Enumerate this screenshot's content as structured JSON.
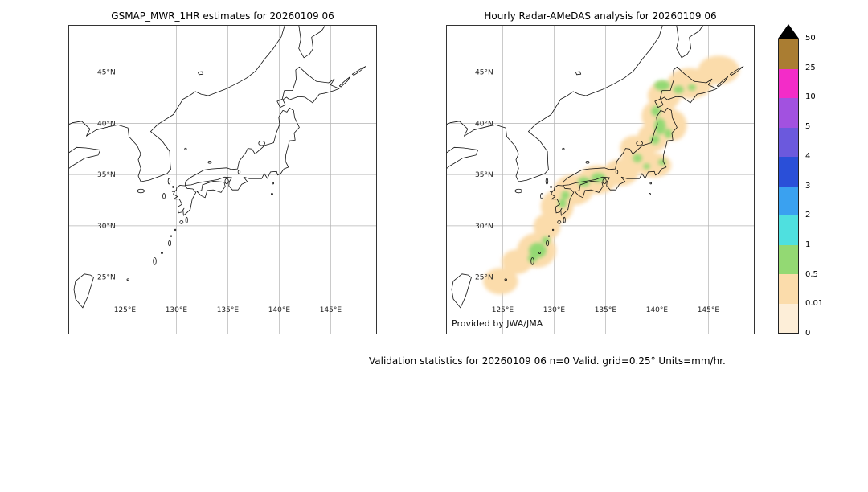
{
  "left_panel": {
    "title": "GSMAP_MWR_1HR estimates for 20260109 06"
  },
  "right_panel": {
    "title": "Hourly Radar-AMeDAS analysis for 20260109 06",
    "credit": "Provided by JWA/JMA"
  },
  "caption": "Validation statistics for 20260109 06  n=0 Valid. grid=0.25° Units=mm/hr.",
  "axes": {
    "lat_labels": [
      "45°N",
      "40°N",
      "35°N",
      "30°N",
      "25°N"
    ],
    "lon_labels": [
      "125°E",
      "130°E",
      "135°E",
      "140°E",
      "145°E"
    ]
  },
  "colorbar": {
    "tick_labels": [
      "50",
      "25",
      "10",
      "5",
      "4",
      "3",
      "2",
      "1",
      "0.5",
      "0.01",
      "0"
    ],
    "block_colors_top_to_bottom": [
      "#aa7d32",
      "#f32cc8",
      "#a251e0",
      "#6b59dd",
      "#2a4fd8",
      "#3aa1f0",
      "#4fe0df",
      "#93d973",
      "#fbdcab",
      "#fdeed8"
    ],
    "overflow_arrow_color": "#000000"
  },
  "chart_data": {
    "type": "heatmap",
    "subtype": "geographic precipitation analysis over Japan, two panels with shared colorbar",
    "units": "mm/hr",
    "grid": true,
    "legend_position": "right",
    "colorbar_levels_mm_hr": [
      0,
      0.01,
      0.5,
      1,
      2,
      3,
      4,
      5,
      10,
      25,
      50
    ],
    "map_extent": {
      "lon_min": 119.5,
      "lon_max": 149.5,
      "lat_min": 19.4,
      "lat_max": 49.6
    },
    "grid_lon_deg": [
      125,
      130,
      135,
      140,
      145
    ],
    "grid_lat_deg": [
      25,
      30,
      35,
      40,
      45
    ],
    "panels": [
      {
        "title": "GSMAP_MWR_1HR estimates for 20260109 06",
        "note": "no precipitation estimates plotted (n=0), basemap only",
        "regions": []
      },
      {
        "title": "Hourly Radar-AMeDAS analysis for 20260109 06",
        "note": "light precipitation band along the Japanese archipelago from Hokkaido to the Ryukyu islands",
        "regions": [
          {
            "lon": 146.0,
            "lat": 45.2,
            "rx_deg": 2.0,
            "ry_deg": 1.4,
            "level_mm_hr": "0.01-0.5"
          },
          {
            "lon": 143.2,
            "lat": 43.9,
            "rx_deg": 2.2,
            "ry_deg": 1.5,
            "level_mm_hr": "0.01-0.5"
          },
          {
            "lon": 140.7,
            "lat": 42.7,
            "rx_deg": 1.6,
            "ry_deg": 1.4,
            "level_mm_hr": "0.01-0.5"
          },
          {
            "lon": 140.2,
            "lat": 40.7,
            "rx_deg": 1.7,
            "ry_deg": 1.6,
            "level_mm_hr": "0.01-0.5"
          },
          {
            "lon": 141.6,
            "lat": 39.8,
            "rx_deg": 1.3,
            "ry_deg": 1.5,
            "level_mm_hr": "0.01-0.5"
          },
          {
            "lon": 139.6,
            "lat": 38.6,
            "rx_deg": 1.5,
            "ry_deg": 1.4,
            "level_mm_hr": "0.01-0.5"
          },
          {
            "lon": 137.8,
            "lat": 37.6,
            "rx_deg": 1.4,
            "ry_deg": 1.2,
            "level_mm_hr": "0.01-0.5"
          },
          {
            "lon": 138.2,
            "lat": 36.6,
            "rx_deg": 1.7,
            "ry_deg": 1.4,
            "level_mm_hr": "0.01-0.5"
          },
          {
            "lon": 139.7,
            "lat": 35.9,
            "rx_deg": 1.7,
            "ry_deg": 1.2,
            "level_mm_hr": "0.01-0.5"
          },
          {
            "lon": 136.5,
            "lat": 35.2,
            "rx_deg": 1.7,
            "ry_deg": 1.3,
            "level_mm_hr": "0.01-0.5"
          },
          {
            "lon": 134.2,
            "lat": 34.5,
            "rx_deg": 1.9,
            "ry_deg": 1.4,
            "level_mm_hr": "0.01-0.5"
          },
          {
            "lon": 131.9,
            "lat": 33.5,
            "rx_deg": 1.9,
            "ry_deg": 1.5,
            "level_mm_hr": "0.01-0.5"
          },
          {
            "lon": 130.3,
            "lat": 31.9,
            "rx_deg": 1.6,
            "ry_deg": 1.6,
            "level_mm_hr": "0.01-0.5"
          },
          {
            "lon": 129.3,
            "lat": 29.9,
            "rx_deg": 1.3,
            "ry_deg": 1.3,
            "level_mm_hr": "0.01-0.5"
          },
          {
            "lon": 128.3,
            "lat": 27.6,
            "rx_deg": 1.9,
            "ry_deg": 1.7,
            "level_mm_hr": "0.01-0.5"
          },
          {
            "lon": 126.4,
            "lat": 26.5,
            "rx_deg": 1.5,
            "ry_deg": 1.2,
            "level_mm_hr": "0.01-0.5"
          },
          {
            "lon": 124.8,
            "lat": 24.6,
            "rx_deg": 1.7,
            "ry_deg": 1.3,
            "level_mm_hr": "0.01-0.5"
          },
          {
            "lon": 140.5,
            "lat": 43.7,
            "rx_deg": 0.75,
            "ry_deg": 0.5,
            "level_mm_hr": "0.5-1"
          },
          {
            "lon": 142.1,
            "lat": 43.3,
            "rx_deg": 0.5,
            "ry_deg": 0.38,
            "level_mm_hr": "0.5-1"
          },
          {
            "lon": 143.4,
            "lat": 43.5,
            "rx_deg": 0.4,
            "ry_deg": 0.3,
            "level_mm_hr": "0.5-1"
          },
          {
            "lon": 139.9,
            "lat": 41.2,
            "rx_deg": 0.45,
            "ry_deg": 0.5,
            "level_mm_hr": "0.5-1"
          },
          {
            "lon": 140.3,
            "lat": 39.7,
            "rx_deg": 0.55,
            "ry_deg": 0.8,
            "level_mm_hr": "0.5-1"
          },
          {
            "lon": 141.1,
            "lat": 39.0,
            "rx_deg": 0.35,
            "ry_deg": 0.45,
            "level_mm_hr": "0.5-1"
          },
          {
            "lon": 139.8,
            "lat": 38.4,
            "rx_deg": 0.45,
            "ry_deg": 0.45,
            "level_mm_hr": "0.5-1"
          },
          {
            "lon": 138.1,
            "lat": 36.6,
            "rx_deg": 0.45,
            "ry_deg": 0.4,
            "level_mm_hr": "0.5-1"
          },
          {
            "lon": 139.0,
            "lat": 35.8,
            "rx_deg": 0.32,
            "ry_deg": 0.28,
            "level_mm_hr": "0.5-1"
          },
          {
            "lon": 140.5,
            "lat": 36.2,
            "rx_deg": 0.38,
            "ry_deg": 0.3,
            "level_mm_hr": "0.5-1"
          },
          {
            "lon": 134.3,
            "lat": 34.7,
            "rx_deg": 0.7,
            "ry_deg": 0.45,
            "level_mm_hr": "0.5-1"
          },
          {
            "lon": 132.9,
            "lat": 34.3,
            "rx_deg": 0.6,
            "ry_deg": 0.45,
            "level_mm_hr": "0.5-1"
          },
          {
            "lon": 131.1,
            "lat": 33.0,
            "rx_deg": 0.4,
            "ry_deg": 0.4,
            "level_mm_hr": "0.5-1"
          },
          {
            "lon": 130.8,
            "lat": 32.2,
            "rx_deg": 0.4,
            "ry_deg": 0.45,
            "level_mm_hr": "0.5-1"
          },
          {
            "lon": 129.2,
            "lat": 28.6,
            "rx_deg": 0.4,
            "ry_deg": 0.35,
            "level_mm_hr": "0.5-1"
          },
          {
            "lon": 128.4,
            "lat": 27.6,
            "rx_deg": 0.85,
            "ry_deg": 0.75,
            "level_mm_hr": "0.5-1"
          },
          {
            "lon": 127.9,
            "lat": 26.8,
            "rx_deg": 0.45,
            "ry_deg": 0.4,
            "level_mm_hr": "0.5-1"
          }
        ]
      }
    ]
  }
}
